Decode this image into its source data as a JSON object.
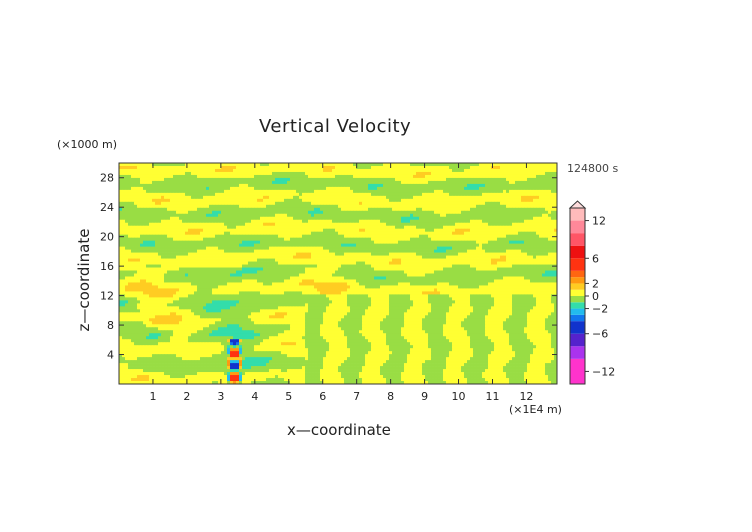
{
  "chart_data": {
    "type": "heatmap",
    "title": "Vertical Velocity",
    "xlabel": "x—coordinate",
    "ylabel": "z—coordinate",
    "x_unit": "(×1E4 m)",
    "y_unit": "(×1000 m)",
    "time_label": "124800 s",
    "xlim": [
      0,
      12.9
    ],
    "ylim": [
      0,
      30
    ],
    "x_ticks": [
      1,
      2,
      3,
      4,
      5,
      6,
      7,
      8,
      9,
      10,
      11,
      12
    ],
    "y_ticks": [
      4,
      8,
      12,
      16,
      20,
      24,
      28
    ],
    "colorbar": {
      "tick_values": [
        12,
        6,
        2,
        0,
        -2,
        -6,
        -12
      ],
      "tick_labels": [
        "12",
        "6",
        "2",
        "0",
        "−2",
        "−6",
        "−12"
      ],
      "range": [
        -14,
        14
      ],
      "levels": [
        {
          "from": -14,
          "to": -10,
          "color": "#ff33cc"
        },
        {
          "from": -10,
          "to": -8,
          "color": "#aa33ee"
        },
        {
          "from": -8,
          "to": -6,
          "color": "#5522cc"
        },
        {
          "from": -6,
          "to": -4,
          "color": "#1133cc"
        },
        {
          "from": -4,
          "to": -3,
          "color": "#1177ee"
        },
        {
          "from": -3,
          "to": -2,
          "color": "#22bbee"
        },
        {
          "from": -2,
          "to": -1,
          "color": "#33ddaa"
        },
        {
          "from": -1,
          "to": 0,
          "color": "#99dd44"
        },
        {
          "from": 0,
          "to": 1,
          "color": "#ffff33"
        },
        {
          "from": 1,
          "to": 2,
          "color": "#ffcc22"
        },
        {
          "from": 2,
          "to": 3,
          "color": "#ff9911"
        },
        {
          "from": 3,
          "to": 4,
          "color": "#ff6611"
        },
        {
          "from": 4,
          "to": 6,
          "color": "#ff3311"
        },
        {
          "from": 6,
          "to": 8,
          "color": "#ee1111"
        },
        {
          "from": 8,
          "to": 10,
          "color": "#ff5566"
        },
        {
          "from": 10,
          "to": 12,
          "color": "#ff8899"
        },
        {
          "from": 12,
          "to": 14,
          "color": "#ffbbbb"
        }
      ]
    },
    "field_description_colors": {
      "positive_small": "#ffff33",
      "negative_small": "#99dd44"
    }
  }
}
